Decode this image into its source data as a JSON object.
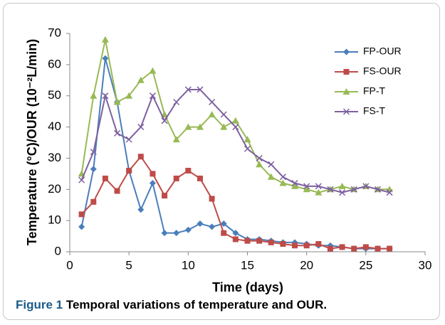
{
  "chart_data": {
    "type": "line",
    "x_label": "Time (days)",
    "y_label": "Temperature (°C)/OUR (10⁻²L/min)",
    "caption": {
      "label": "Figure 1",
      "text": "Temporal variations of temperature and OUR."
    },
    "x": [
      1,
      2,
      3,
      4,
      5,
      6,
      7,
      8,
      9,
      10,
      11,
      12,
      13,
      14,
      15,
      16,
      17,
      18,
      19,
      20,
      21,
      22,
      23,
      24,
      25,
      26,
      27
    ],
    "series": [
      {
        "name": "FP-OUR",
        "color": "#4a7ebb",
        "marker": "diamond",
        "values": [
          8,
          26.5,
          62,
          48,
          26,
          13.5,
          22,
          6,
          6,
          7,
          9,
          8,
          9,
          6,
          4,
          4,
          3.5,
          3,
          3,
          2.5,
          2,
          2,
          1.5,
          1,
          1,
          1,
          1
        ]
      },
      {
        "name": "FS-OUR",
        "color": "#be4b48",
        "marker": "square",
        "values": [
          12,
          16,
          23.5,
          19.5,
          26,
          30.5,
          25,
          18,
          23.5,
          26,
          23.5,
          17,
          6,
          4,
          3.5,
          3.5,
          3,
          2.5,
          2,
          2,
          2.5,
          1,
          1.5,
          1,
          1.5,
          1,
          1
        ]
      },
      {
        "name": "FP-T",
        "color": "#98b954",
        "marker": "triangle",
        "values": [
          25,
          50,
          68,
          48,
          50,
          55,
          58,
          44,
          36,
          40,
          40,
          44,
          40,
          42,
          36,
          28,
          24,
          22,
          21,
          20,
          19,
          20,
          21,
          20,
          21,
          20,
          20
        ]
      },
      {
        "name": "FS-T",
        "color": "#7d60a0",
        "marker": "x",
        "values": [
          23,
          32,
          50,
          38,
          36,
          40,
          50,
          42,
          48,
          52,
          52,
          48,
          44,
          40,
          33,
          30,
          28,
          24,
          22,
          21,
          21,
          20,
          19,
          20,
          21,
          20,
          19
        ]
      }
    ],
    "xlim": [
      0,
      30
    ],
    "xticks": [
      0,
      5,
      10,
      15,
      20,
      25,
      30
    ],
    "ylim": [
      0,
      70
    ],
    "yticks": [
      0,
      10,
      20,
      30,
      40,
      50,
      60,
      70
    ],
    "grid": false,
    "legend": "upper right"
  }
}
